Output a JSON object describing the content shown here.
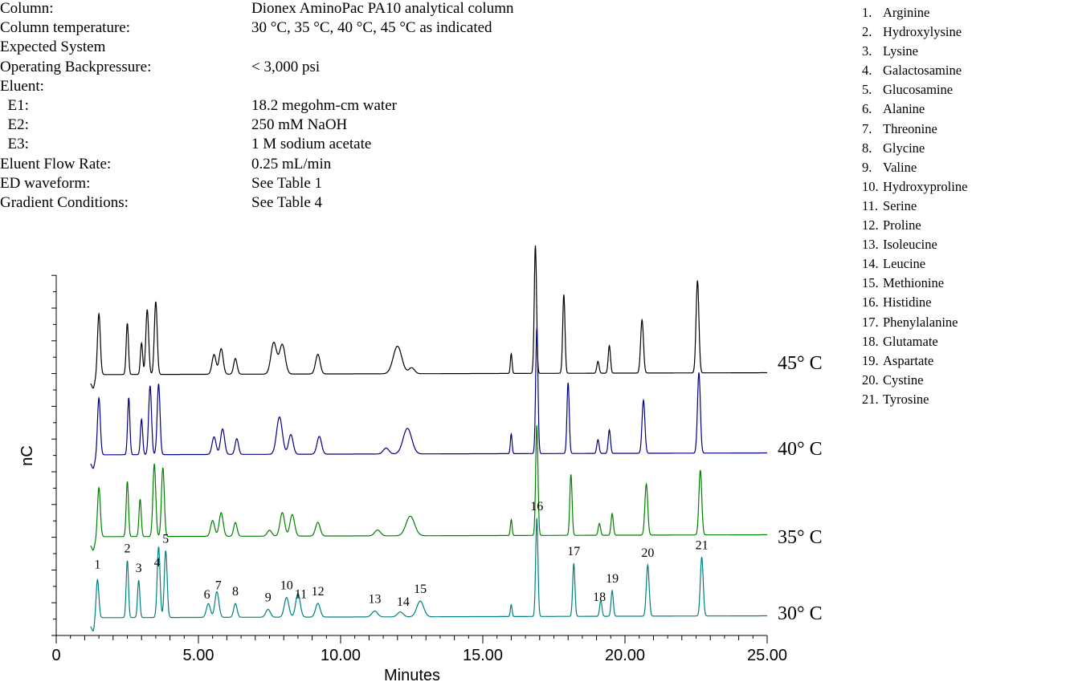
{
  "conditions": [
    {
      "label": "Column:",
      "value": "Dionex AminoPac PA10 analytical column"
    },
    {
      "label": "Column temperature:",
      "value": "30 °C, 35 °C, 40 °C, 45 °C as indicated"
    },
    {
      "label": "Expected System",
      "value": ""
    },
    {
      "label": "Operating Backpressure:",
      "value": "< 3,000 psi"
    },
    {
      "label": "Eluent:",
      "value": ""
    },
    {
      "label": "  E1:",
      "value": "18.2 megohm-cm water"
    },
    {
      "label": "  E2:",
      "value": "250 mM NaOH"
    },
    {
      "label": "  E3:",
      "value": "1 M sodium acetate"
    },
    {
      "label": "Eluent Flow Rate:",
      "value": "0.25 mL/min"
    },
    {
      "label": "ED waveform:",
      "value": "See Table 1"
    },
    {
      "label": "Gradient Conditions:",
      "value": "See Table 4"
    }
  ],
  "peak_legend": [
    {
      "num": "1.",
      "name": "Arginine"
    },
    {
      "num": "2.",
      "name": "Hydroxylysine"
    },
    {
      "num": "3.",
      "name": "Lysine"
    },
    {
      "num": "4.",
      "name": "Galactosamine"
    },
    {
      "num": "5.",
      "name": "Glucosamine"
    },
    {
      "num": "6.",
      "name": "Alanine"
    },
    {
      "num": "7.",
      "name": "Threonine"
    },
    {
      "num": "8.",
      "name": "Glycine"
    },
    {
      "num": "9.",
      "name": "Valine"
    },
    {
      "num": "10.",
      "name": "Hydroxyproline"
    },
    {
      "num": "11.",
      "name": "Serine"
    },
    {
      "num": "12.",
      "name": "Proline"
    },
    {
      "num": "13.",
      "name": "Isoleucine"
    },
    {
      "num": "14.",
      "name": "Leucine"
    },
    {
      "num": "15.",
      "name": "Methionine"
    },
    {
      "num": "16.",
      "name": "Histidine"
    },
    {
      "num": "17.",
      "name": "Phenylalanine"
    },
    {
      "num": "18.",
      "name": "Glutamate"
    },
    {
      "num": "19.",
      "name": "Aspartate"
    },
    {
      "num": "20.",
      "name": "Cystine"
    },
    {
      "num": "21.",
      "name": "Tyrosine"
    }
  ],
  "chart_data": {
    "type": "line",
    "xlabel": "Minutes",
    "ylabel": "nC",
    "xlim": [
      0,
      25
    ],
    "xticks": [
      0,
      5,
      10,
      15,
      20,
      25
    ],
    "xtick_labels": [
      "0",
      "5.00",
      "10.00",
      "15.00",
      "20.00",
      "25.00"
    ],
    "series": [
      {
        "name": "45° C",
        "color": "#000000",
        "baseline": 0.45,
        "drift": 0.1,
        "peaks": [
          [
            1.5,
            3.2,
            0.05
          ],
          [
            2.5,
            2.6,
            0.04
          ],
          [
            3.0,
            1.6,
            0.04
          ],
          [
            3.2,
            3.3,
            0.05
          ],
          [
            3.5,
            3.7,
            0.05
          ],
          [
            5.55,
            1.0,
            0.07
          ],
          [
            5.8,
            1.3,
            0.07
          ],
          [
            6.3,
            0.8,
            0.06
          ],
          [
            7.65,
            1.6,
            0.1
          ],
          [
            7.95,
            1.5,
            0.1
          ],
          [
            9.2,
            1.0,
            0.08
          ],
          [
            12.0,
            1.4,
            0.15
          ],
          [
            12.5,
            0.3,
            0.1
          ],
          [
            16.0,
            1.0,
            0.03
          ],
          [
            16.85,
            6.5,
            0.04
          ],
          [
            17.85,
            4.0,
            0.04
          ],
          [
            19.05,
            0.6,
            0.04
          ],
          [
            19.45,
            1.4,
            0.04
          ],
          [
            20.6,
            2.7,
            0.05
          ],
          [
            22.55,
            4.7,
            0.05
          ]
        ]
      },
      {
        "name": "40° C",
        "color": "#000080",
        "baseline": 0.45,
        "drift": 0.1,
        "peaks": [
          [
            1.5,
            3.0,
            0.05
          ],
          [
            2.55,
            2.9,
            0.04
          ],
          [
            3.0,
            1.8,
            0.04
          ],
          [
            3.3,
            3.5,
            0.05
          ],
          [
            3.6,
            3.6,
            0.05
          ],
          [
            5.55,
            0.9,
            0.07
          ],
          [
            5.85,
            1.3,
            0.07
          ],
          [
            6.35,
            0.8,
            0.06
          ],
          [
            7.85,
            1.9,
            0.1
          ],
          [
            8.25,
            1.0,
            0.08
          ],
          [
            9.25,
            0.9,
            0.08
          ],
          [
            11.6,
            0.3,
            0.1
          ],
          [
            12.35,
            1.3,
            0.15
          ],
          [
            16.0,
            1.0,
            0.03
          ],
          [
            16.9,
            6.4,
            0.04
          ],
          [
            18.0,
            3.6,
            0.04
          ],
          [
            19.05,
            0.7,
            0.04
          ],
          [
            19.45,
            1.2,
            0.04
          ],
          [
            20.65,
            2.7,
            0.05
          ],
          [
            22.6,
            4.1,
            0.05
          ]
        ]
      },
      {
        "name": "35° C",
        "color": "#008000",
        "baseline": 0.45,
        "drift": 0.1,
        "peaks": [
          [
            1.5,
            2.6,
            0.05
          ],
          [
            2.5,
            2.8,
            0.04
          ],
          [
            2.95,
            1.9,
            0.04
          ],
          [
            3.45,
            3.7,
            0.05
          ],
          [
            3.75,
            3.5,
            0.05
          ],
          [
            5.5,
            0.8,
            0.07
          ],
          [
            5.8,
            1.2,
            0.07
          ],
          [
            6.3,
            0.7,
            0.06
          ],
          [
            7.5,
            0.3,
            0.08
          ],
          [
            7.95,
            1.2,
            0.08
          ],
          [
            8.3,
            1.1,
            0.08
          ],
          [
            9.2,
            0.7,
            0.08
          ],
          [
            11.3,
            0.3,
            0.1
          ],
          [
            12.45,
            1.0,
            0.15
          ],
          [
            16.0,
            0.8,
            0.03
          ],
          [
            16.9,
            5.6,
            0.04
          ],
          [
            18.1,
            3.1,
            0.04
          ],
          [
            19.1,
            0.6,
            0.04
          ],
          [
            19.55,
            1.1,
            0.04
          ],
          [
            20.75,
            2.6,
            0.05
          ],
          [
            22.65,
            3.3,
            0.05
          ]
        ]
      },
      {
        "name": "30° C",
        "color": "#008080",
        "baseline": 0.45,
        "drift": 0.1,
        "peaks": [
          [
            1.45,
            2.1,
            0.05
          ],
          [
            2.5,
            2.9,
            0.04
          ],
          [
            2.9,
            1.9,
            0.04
          ],
          [
            3.6,
            3.6,
            0.05
          ],
          [
            3.85,
            3.4,
            0.05
          ],
          [
            5.35,
            0.7,
            0.07
          ],
          [
            5.65,
            1.3,
            0.07
          ],
          [
            6.3,
            0.7,
            0.06
          ],
          [
            7.45,
            0.4,
            0.08
          ],
          [
            8.1,
            1.0,
            0.08
          ],
          [
            8.5,
            1.2,
            0.08
          ],
          [
            9.2,
            0.7,
            0.08
          ],
          [
            11.2,
            0.3,
            0.1
          ],
          [
            12.1,
            0.25,
            0.1
          ],
          [
            12.8,
            0.8,
            0.12
          ],
          [
            16.0,
            0.6,
            0.03
          ],
          [
            16.9,
            5.0,
            0.04
          ],
          [
            18.2,
            2.7,
            0.04
          ],
          [
            19.15,
            0.8,
            0.04
          ],
          [
            19.55,
            1.3,
            0.04
          ],
          [
            20.8,
            2.6,
            0.05
          ],
          [
            22.7,
            3.0,
            0.05
          ]
        ]
      }
    ],
    "peak_labels": [
      {
        "text": "1",
        "x": 1.45
      },
      {
        "text": "2",
        "x": 2.5
      },
      {
        "text": "3",
        "x": 2.9
      },
      {
        "text": "4",
        "x": 3.55
      },
      {
        "text": "5",
        "x": 3.85
      },
      {
        "text": "6",
        "x": 5.3
      },
      {
        "text": "7",
        "x": 5.7
      },
      {
        "text": "8",
        "x": 6.3
      },
      {
        "text": "9",
        "x": 7.45
      },
      {
        "text": "10",
        "x": 8.1
      },
      {
        "text": "11",
        "x": 8.6
      },
      {
        "text": "12",
        "x": 9.2
      },
      {
        "text": "13",
        "x": 11.2
      },
      {
        "text": "14",
        "x": 12.2
      },
      {
        "text": "15",
        "x": 12.8
      },
      {
        "text": "16",
        "x": 16.9
      },
      {
        "text": "17",
        "x": 18.2
      },
      {
        "text": "18",
        "x": 19.1
      },
      {
        "text": "19",
        "x": 19.55
      },
      {
        "text": "20",
        "x": 20.8
      },
      {
        "text": "21",
        "x": 22.7
      }
    ]
  }
}
